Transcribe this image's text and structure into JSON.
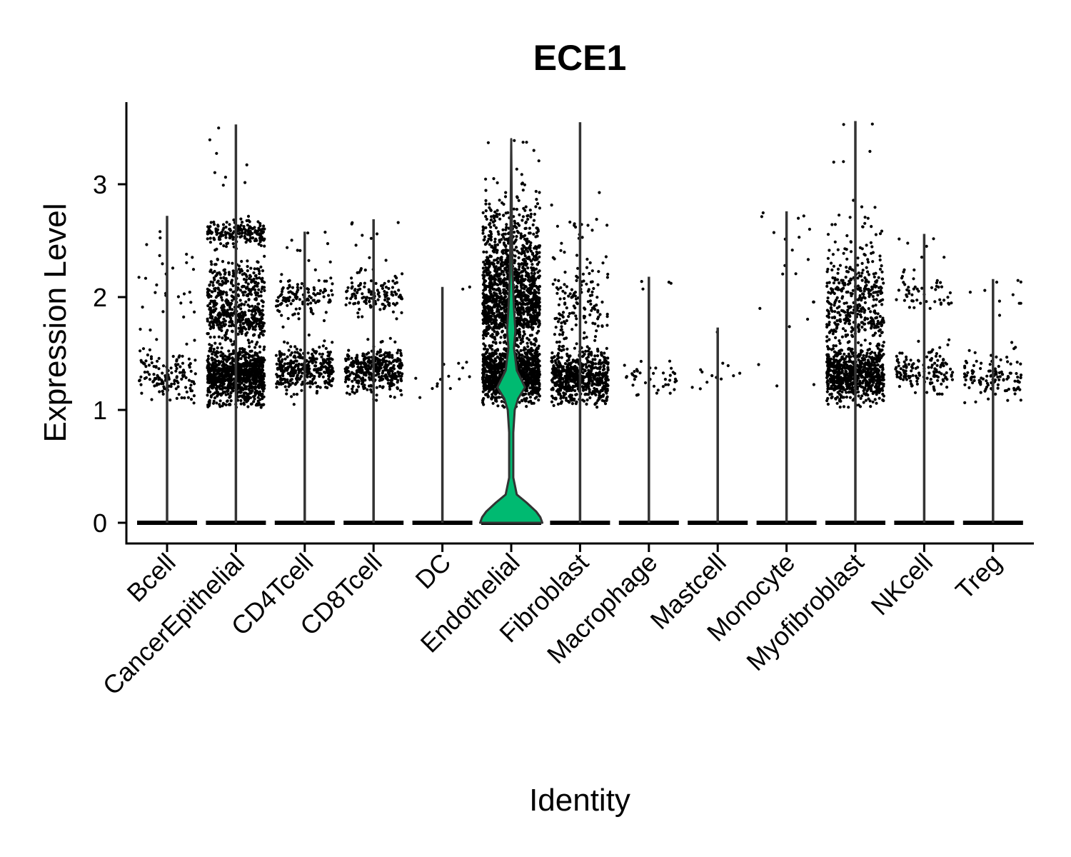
{
  "chart_data": {
    "type": "violin",
    "title": "ECE1",
    "xlabel": "Identity",
    "ylabel": "Expression Level",
    "ylim": [
      -0.18,
      3.75
    ],
    "yticks": [
      0,
      1,
      2,
      3
    ],
    "categories": [
      "Bcell",
      "CancerEpithelial",
      "CD4Tcell",
      "CD8Tcell",
      "DC",
      "Endothelial",
      "Fibroblast",
      "Macrophage",
      "Mastcell",
      "Monocyte",
      "Myofibroblast",
      "NKcell",
      "Treg"
    ],
    "violin_fill": "#00BA71",
    "max_expression": [
      2.72,
      3.53,
      2.58,
      2.69,
      2.09,
      3.4,
      3.55,
      2.18,
      1.73,
      2.76,
      3.56,
      2.56,
      2.16
    ],
    "endothelial_density_profile": [
      {
        "y": 0.0,
        "half_width": 0.45
      },
      {
        "y": 0.05,
        "half_width": 0.42
      },
      {
        "y": 0.1,
        "half_width": 0.36
      },
      {
        "y": 0.18,
        "half_width": 0.22
      },
      {
        "y": 0.25,
        "half_width": 0.08
      },
      {
        "y": 0.4,
        "half_width": 0.03
      },
      {
        "y": 0.8,
        "half_width": 0.03
      },
      {
        "y": 1.0,
        "half_width": 0.05
      },
      {
        "y": 1.1,
        "half_width": 0.1
      },
      {
        "y": 1.2,
        "half_width": 0.2
      },
      {
        "y": 1.35,
        "half_width": 0.08
      },
      {
        "y": 1.55,
        "half_width": 0.04
      },
      {
        "y": 1.7,
        "half_width": 0.06
      },
      {
        "y": 1.9,
        "half_width": 0.04
      },
      {
        "y": 2.2,
        "half_width": 0.02
      },
      {
        "y": 2.6,
        "half_width": 0.01
      },
      {
        "y": 3.4,
        "half_width": 0.0
      }
    ]
  },
  "colors": {
    "violin_fill": "#00BA71",
    "violin_stroke": "#333333",
    "points": "#000000",
    "axis": "#000000"
  }
}
